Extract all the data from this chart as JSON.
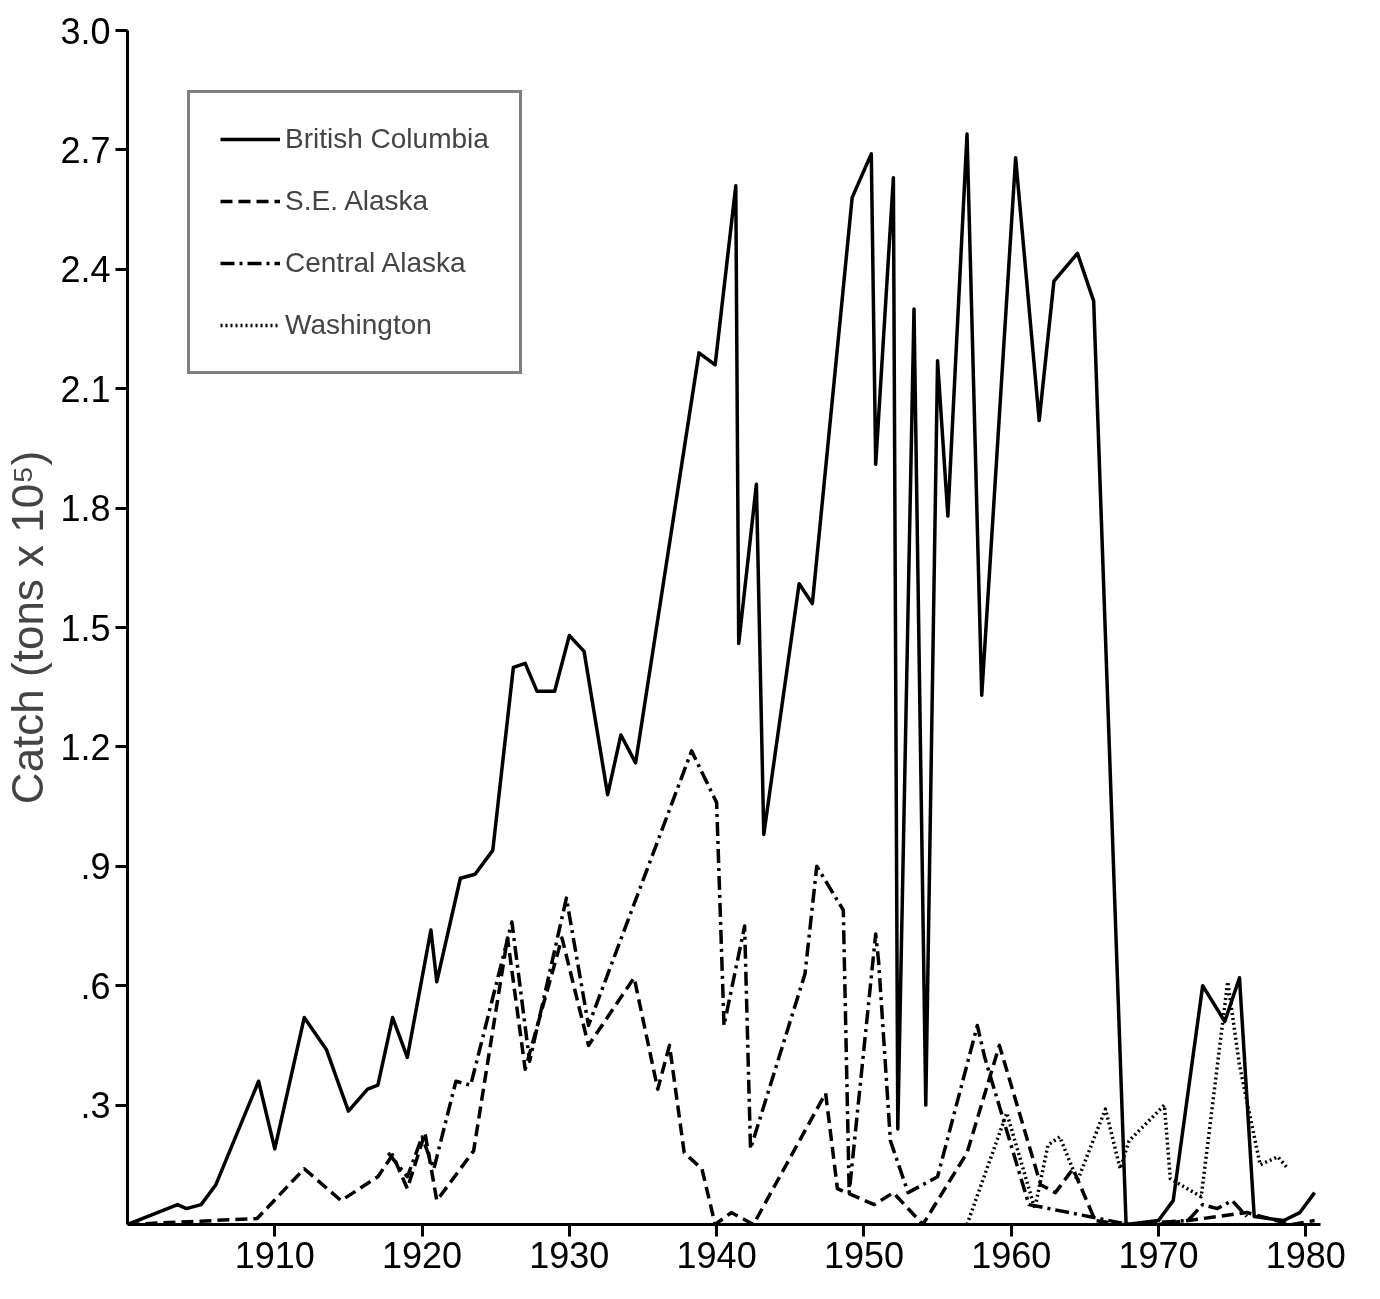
{
  "chart_data": {
    "type": "line",
    "ylabel": "Catch (tons x 10⁵)",
    "xlim": [
      1900,
      1981
    ],
    "ylim": [
      0,
      3.0
    ],
    "xticks": [
      1910,
      1920,
      1930,
      1940,
      1950,
      1960,
      1970,
      1980
    ],
    "yticks": [
      {
        "value": 0.3,
        "label": ".3"
      },
      {
        "value": 0.6,
        "label": ".6"
      },
      {
        "value": 0.9,
        "label": ".9"
      },
      1.2,
      1.5,
      1.8,
      2.1,
      2.4,
      2.7,
      {
        "value": 3.0,
        "label": "3.0"
      }
    ],
    "grid": false,
    "legend": "top left",
    "marker": "none",
    "series": [
      {
        "name": "British Columbia",
        "color": "#000000",
        "line_style": "solid",
        "x": [
          1900,
          1903.4,
          1904,
          1905,
          1906,
          1908.9,
          1910,
          1912,
          1913.5,
          1915,
          1916.3,
          1917,
          1918,
          1919,
          1920.6,
          1921,
          1922.6,
          1923.6,
          1924.8,
          1926.2,
          1927,
          1927.8,
          1929,
          1930,
          1931,
          1932.6,
          1933.5,
          1934.5,
          1938.8,
          1939.9,
          1941.3,
          1941.5,
          1942.7,
          1943.2,
          1945.6,
          1946.5,
          1949.2,
          1950.5,
          1950.8,
          1952,
          1952.3,
          1953.4,
          1954.2,
          1955,
          1955.7,
          1957,
          1958,
          1960.3,
          1961.9,
          1962.9,
          1964.5,
          1965.6,
          1967.8,
          1970,
          1971,
          1973,
          1974.5,
          1975.5,
          1976.5,
          1978.5,
          1979.6,
          1980.6
        ],
        "values": [
          0,
          0.05,
          0.04,
          0.05,
          0.1,
          0.36,
          0.19,
          0.52,
          0.44,
          0.285,
          0.34,
          0.35,
          0.52,
          0.42,
          0.74,
          0.61,
          0.87,
          0.88,
          0.94,
          1.4,
          1.41,
          1.34,
          1.34,
          1.48,
          1.44,
          1.08,
          1.23,
          1.16,
          2.19,
          2.16,
          2.61,
          1.46,
          1.86,
          0.98,
          1.61,
          1.56,
          2.58,
          2.69,
          1.91,
          2.63,
          0.24,
          2.3,
          0.3,
          2.17,
          1.78,
          2.74,
          1.33,
          2.68,
          2.02,
          2.37,
          2.44,
          2.32,
          0,
          0.01,
          0.06,
          0.6,
          0.51,
          0.62,
          0.02,
          0.01,
          0.03,
          0.08
        ]
      },
      {
        "name": "S.E. Alaska",
        "color": "#000000",
        "line_style": "dashed",
        "x": [
          1900,
          1908.8,
          1912,
          1914.5,
          1917,
          1918,
          1919,
          1920.2,
          1921,
          1923.5,
          1925.8,
          1927,
          1929.5,
          1931.3,
          1934.4,
          1936,
          1936.8,
          1937.8,
          1939,
          1939.9,
          1941,
          1942.5,
          1947.4,
          1948.2,
          1950.7,
          1952,
          1954,
          1957,
          1959.2,
          1962,
          1963,
          1964.2,
          1965.7,
          1967.5,
          1970,
          1974,
          1976,
          1979,
          1980.6
        ],
        "values": [
          0,
          0.015,
          0.14,
          0.06,
          0.12,
          0.175,
          0.09,
          0.23,
          0.06,
          0.185,
          0.72,
          0.39,
          0.72,
          0.45,
          0.62,
          0.34,
          0.45,
          0.18,
          0.14,
          0,
          0.03,
          0,
          0.33,
          0.09,
          0.05,
          0.08,
          0,
          0.18,
          0.45,
          0.1,
          0.08,
          0.14,
          0.01,
          0,
          0,
          0.02,
          0.03,
          0,
          0.01
        ]
      },
      {
        "name": "Central Alaska",
        "color": "#000000",
        "line_style": "dashdot",
        "x": [
          1917.7,
          1919,
          1920,
          1920.8,
          1922.3,
          1923.3,
          1926.1,
          1927.3,
          1929.8,
          1931.3,
          1938.3,
          1940,
          1940.5,
          1941.9,
          1942.3,
          1946,
          1946.8,
          1948.6,
          1949,
          1950.8,
          1951,
          1951.8,
          1953,
          1955,
          1957.7,
          1958.2,
          1961.2,
          1968,
          1972,
          1973,
          1974,
          1975,
          1976
        ],
        "values": [
          0.18,
          0.12,
          0.22,
          0.14,
          0.36,
          0.35,
          0.76,
          0.41,
          0.82,
          0.5,
          1.19,
          1.06,
          0.5,
          0.75,
          0.19,
          0.63,
          0.9,
          0.79,
          0.08,
          0.73,
          0.66,
          0.21,
          0.08,
          0.12,
          0.5,
          0.42,
          0.05,
          0,
          0.01,
          0.05,
          0.04,
          0.06,
          0.02
        ]
      },
      {
        "name": "Washington",
        "color": "#000000",
        "line_style": "dotted",
        "x": [
          1957,
          1959.7,
          1961.6,
          1962.5,
          1963.3,
          1964.5,
          1966.4,
          1967.4,
          1968,
          1970.4,
          1970.8,
          1972.9,
          1974.7,
          1975.5,
          1976.9,
          1978.1,
          1978.8
        ],
        "values": [
          0,
          0.28,
          0.04,
          0.2,
          0.22,
          0.11,
          0.29,
          0.14,
          0.21,
          0.3,
          0.115,
          0.07,
          0.61,
          0.4,
          0.15,
          0.17,
          0.14
        ]
      }
    ]
  }
}
